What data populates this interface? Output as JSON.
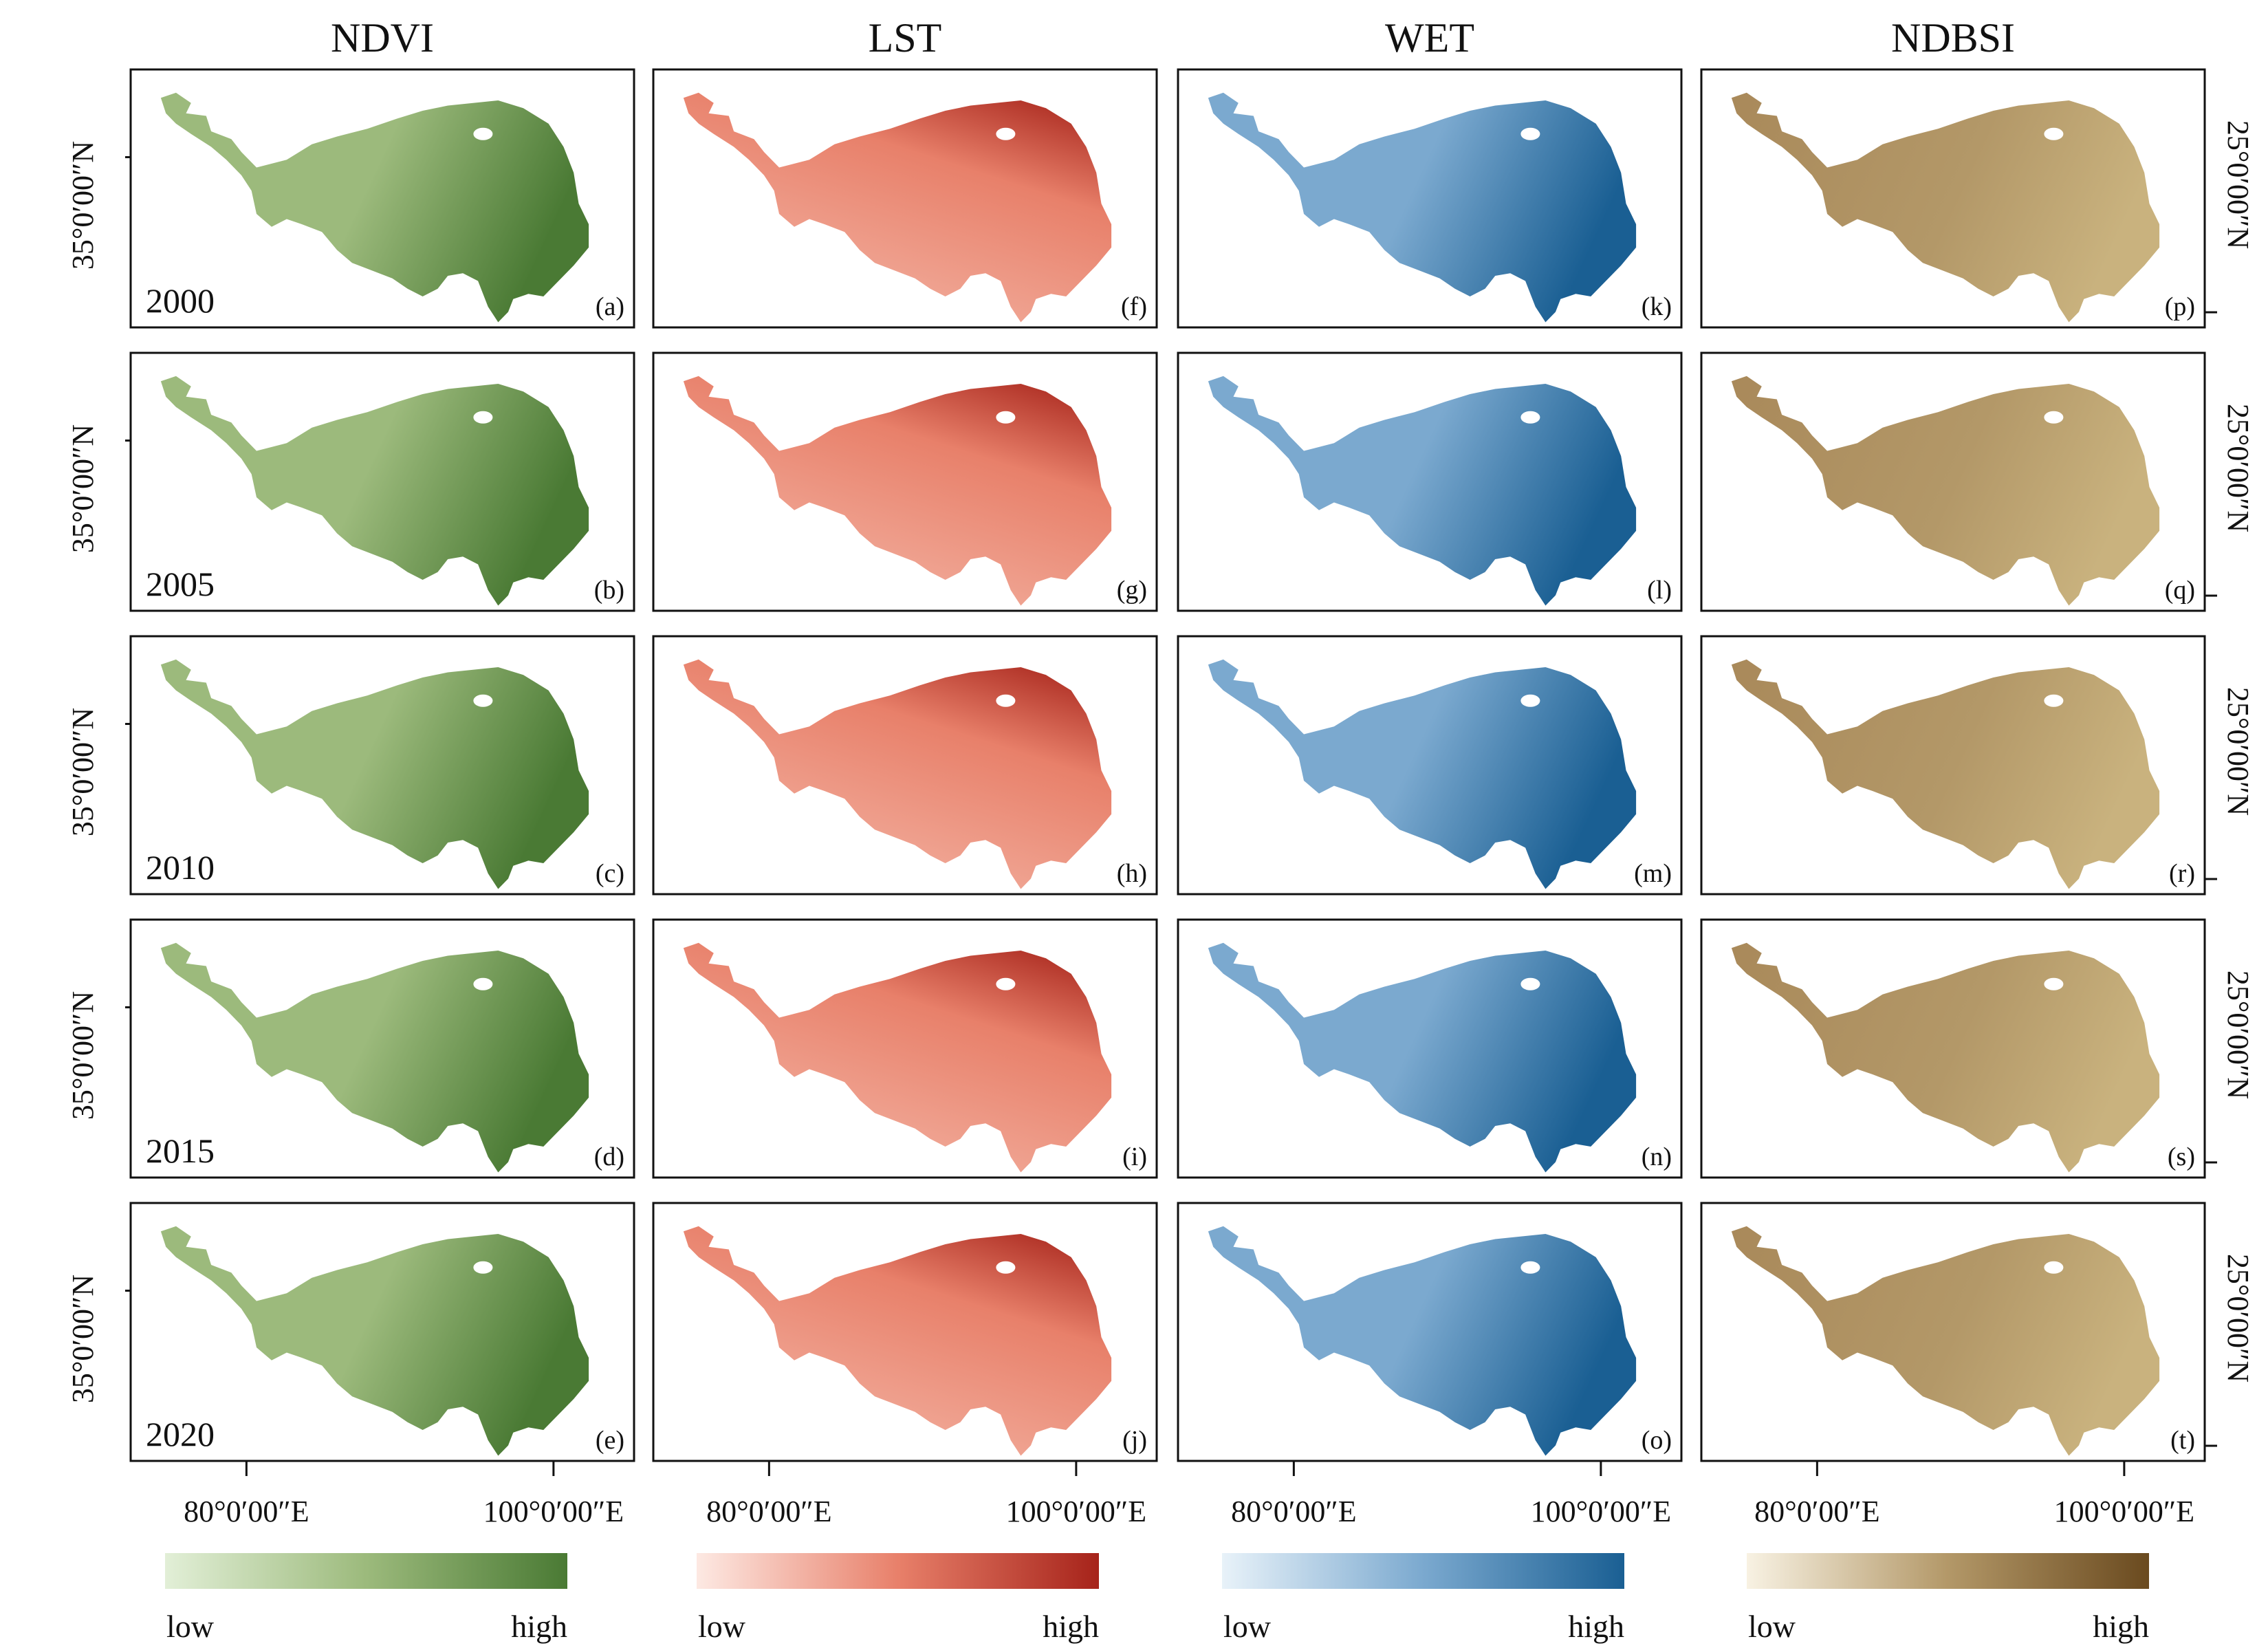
{
  "columns": [
    {
      "id": "ndvi",
      "title": "NDVI",
      "colors": {
        "low": "#e2efd7",
        "mid": "#9cba7c",
        "high": "#4a7a34"
      },
      "legend": {
        "low": "low",
        "high": "high"
      }
    },
    {
      "id": "lst",
      "title": "LST",
      "colors": {
        "low": "#fde9e3",
        "mid": "#e8806a",
        "high": "#a6231a"
      },
      "legend": {
        "low": "low",
        "high": "high"
      }
    },
    {
      "id": "wet",
      "title": "WET",
      "colors": {
        "low": "#e8f2f9",
        "mid": "#7ba9cf",
        "high": "#1a5f93"
      },
      "legend": {
        "low": "low",
        "high": "high"
      }
    },
    {
      "id": "ndbsi",
      "title": "NDBSI",
      "colors": {
        "low": "#f8f2e3",
        "mid": "#b39868",
        "high": "#6a4a1f"
      },
      "legend": {
        "low": "low",
        "high": "high"
      }
    }
  ],
  "rows": [
    {
      "year": "2000"
    },
    {
      "year": "2005"
    },
    {
      "year": "2010"
    },
    {
      "year": "2015"
    },
    {
      "year": "2020"
    }
  ],
  "panel_labels": [
    [
      "(a)",
      "(f)",
      "(k)",
      "(p)"
    ],
    [
      "(b)",
      "(g)",
      "(l)",
      "(q)"
    ],
    [
      "(c)",
      "(h)",
      "(m)",
      "(r)"
    ],
    [
      "(d)",
      "(i)",
      "(n)",
      "(s)"
    ],
    [
      "(e)",
      "(j)",
      "(o)",
      "(t)"
    ]
  ],
  "axes": {
    "left_lat_label": "35°0′00″N",
    "right_lat_label": "25°0′00″N",
    "lon_labels": [
      "80°0′00″E",
      "100°0′00″E"
    ]
  }
}
